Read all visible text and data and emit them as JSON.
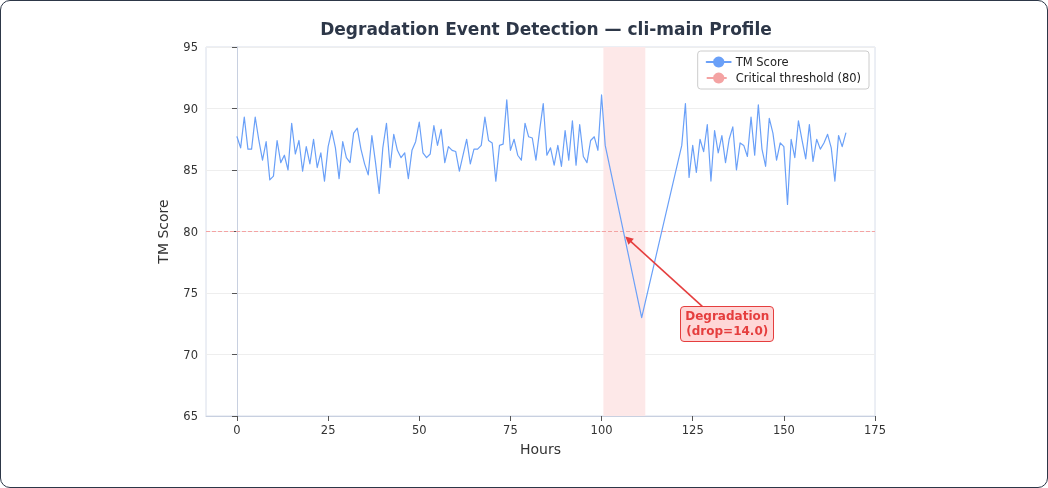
{
  "chart_data": {
    "type": "line",
    "title": "Degradation Event Detection — cli-main Profile",
    "xlabel": "Hours",
    "ylabel": "TM Score",
    "xlim": [
      -8.5,
      175
    ],
    "xticks": [
      0,
      25,
      50,
      75,
      100,
      125,
      150,
      175
    ],
    "ylim": [
      65,
      95
    ],
    "yticks": [
      65,
      70,
      75,
      80,
      85,
      90,
      95
    ],
    "grid": "y",
    "legend": "top right",
    "marker": "none",
    "line_style": "solid",
    "series": [
      {
        "name": "TM Score",
        "color": "#6aa0f8",
        "x": [
          0,
          1,
          2,
          3,
          4,
          5,
          6,
          7,
          8,
          9,
          10,
          11,
          12,
          13,
          14,
          15,
          16,
          17,
          18,
          19,
          20,
          21,
          22,
          23,
          24,
          25,
          26,
          27,
          28,
          29,
          30,
          31,
          32,
          33,
          34,
          35,
          36,
          37,
          38,
          39,
          40,
          41,
          42,
          43,
          44,
          45,
          46,
          47,
          48,
          49,
          50,
          51,
          52,
          53,
          54,
          55,
          56,
          57,
          58,
          59,
          60,
          61,
          62,
          63,
          64,
          65,
          66,
          67,
          68,
          69,
          70,
          71,
          72,
          73,
          74,
          75,
          76,
          77,
          78,
          79,
          80,
          81,
          82,
          83,
          84,
          85,
          86,
          87,
          88,
          89,
          90,
          91,
          92,
          93,
          94,
          95,
          96,
          97,
          98,
          99,
          100,
          101,
          111,
          122,
          123,
          124,
          125,
          126,
          127,
          128,
          129,
          130,
          131,
          132,
          133,
          134,
          135,
          136,
          137,
          138,
          139,
          140,
          141,
          142,
          143,
          144,
          145,
          146,
          147,
          148,
          149,
          150,
          151,
          152,
          153,
          154,
          155,
          156,
          157,
          158,
          159,
          160,
          161,
          162,
          163,
          164,
          165,
          166,
          167
        ],
        "values": [
          87.7,
          86.8,
          89.3,
          86.7,
          86.7,
          89.3,
          87.4,
          85.8,
          87.3,
          84.2,
          84.5,
          87.4,
          85.6,
          86.2,
          85.0,
          88.8,
          86.3,
          87.4,
          84.9,
          86.9,
          85.5,
          87.5,
          85.2,
          86.4,
          84.1,
          86.9,
          88.2,
          86.8,
          84.3,
          87.3,
          86.0,
          85.6,
          88.0,
          88.4,
          86.7,
          85.5,
          84.6,
          87.8,
          85.6,
          83.1,
          86.8,
          88.8,
          85.2,
          87.9,
          86.6,
          86.0,
          86.4,
          84.3,
          86.6,
          87.3,
          88.9,
          86.4,
          86.0,
          86.3,
          88.6,
          87.0,
          88.3,
          85.6,
          86.9,
          86.6,
          86.5,
          84.9,
          86.2,
          87.5,
          85.5,
          86.7,
          86.7,
          87.0,
          89.3,
          87.4,
          87.2,
          84.1,
          87.0,
          87.1,
          90.7,
          86.6,
          87.5,
          86.2,
          85.8,
          88.8,
          87.7,
          87.6,
          85.8,
          88.2,
          90.4,
          86.2,
          86.8,
          85.4,
          87.0,
          85.3,
          88.2,
          85.8,
          89.0,
          85.4,
          88.7,
          86.1,
          85.6,
          87.4,
          87.7,
          86.6,
          91.1,
          87.0,
          73.0,
          87.0,
          90.4,
          84.4,
          87.0,
          84.8,
          87.5,
          86.5,
          88.7,
          84.1,
          88.2,
          86.4,
          87.8,
          85.6,
          87.5,
          88.5,
          85.0,
          87.2,
          87.0,
          86.1,
          89.3,
          86.2,
          90.3,
          86.7,
          85.3,
          89.2,
          88.0,
          85.8,
          87.2,
          86.9,
          82.2,
          87.5,
          86.0,
          89.0,
          87.4,
          85.9,
          88.7,
          85.7,
          87.5,
          86.7,
          87.2,
          87.9,
          86.8,
          84.1,
          87.8,
          86.9,
          88.0
        ]
      }
    ],
    "ref_lines": [
      {
        "axis": "y",
        "value": 80,
        "label": "Critical threshold (80)",
        "color": "#f4a3a3",
        "line_style": "dashed"
      }
    ],
    "bands": [
      {
        "axis": "x",
        "from": 100.5,
        "to": 112,
        "color": "#fde8e8"
      }
    ],
    "annotations": [
      {
        "text": "Degradation\n(drop=14.0)",
        "x": 106.5,
        "y": 79.6
      }
    ]
  }
}
